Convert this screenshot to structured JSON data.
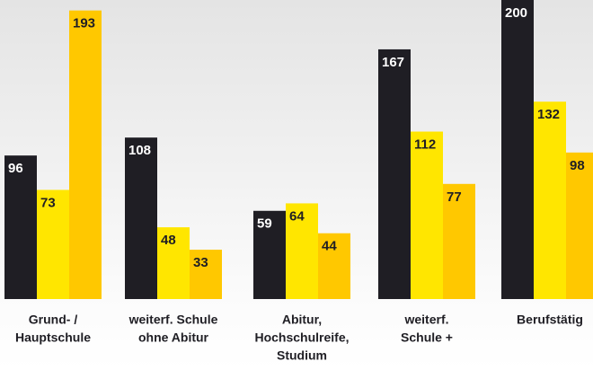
{
  "chart_data": {
    "type": "bar",
    "categories": [
      [
        "Grund- /",
        "Hauptschule"
      ],
      [
        "weiterf. Schule",
        "ohne Abitur"
      ],
      [
        "Abitur,",
        "Hochschulreife,",
        "Studium"
      ],
      [
        "weiterf.",
        "Schule +"
      ],
      [
        "Berufstätig"
      ]
    ],
    "series": [
      {
        "color": "#1f1e24",
        "label_color": "#ffffff",
        "values": [
          96,
          108,
          59,
          167,
          200
        ]
      },
      {
        "color": "#ffe600",
        "label_color": "#1f1e24",
        "values": [
          73,
          48,
          64,
          112,
          132
        ]
      },
      {
        "color": "#ffc800",
        "label_color": "#1f1e24",
        "values": [
          193,
          33,
          44,
          77,
          98
        ]
      }
    ],
    "ylim": [
      0,
      200
    ]
  }
}
